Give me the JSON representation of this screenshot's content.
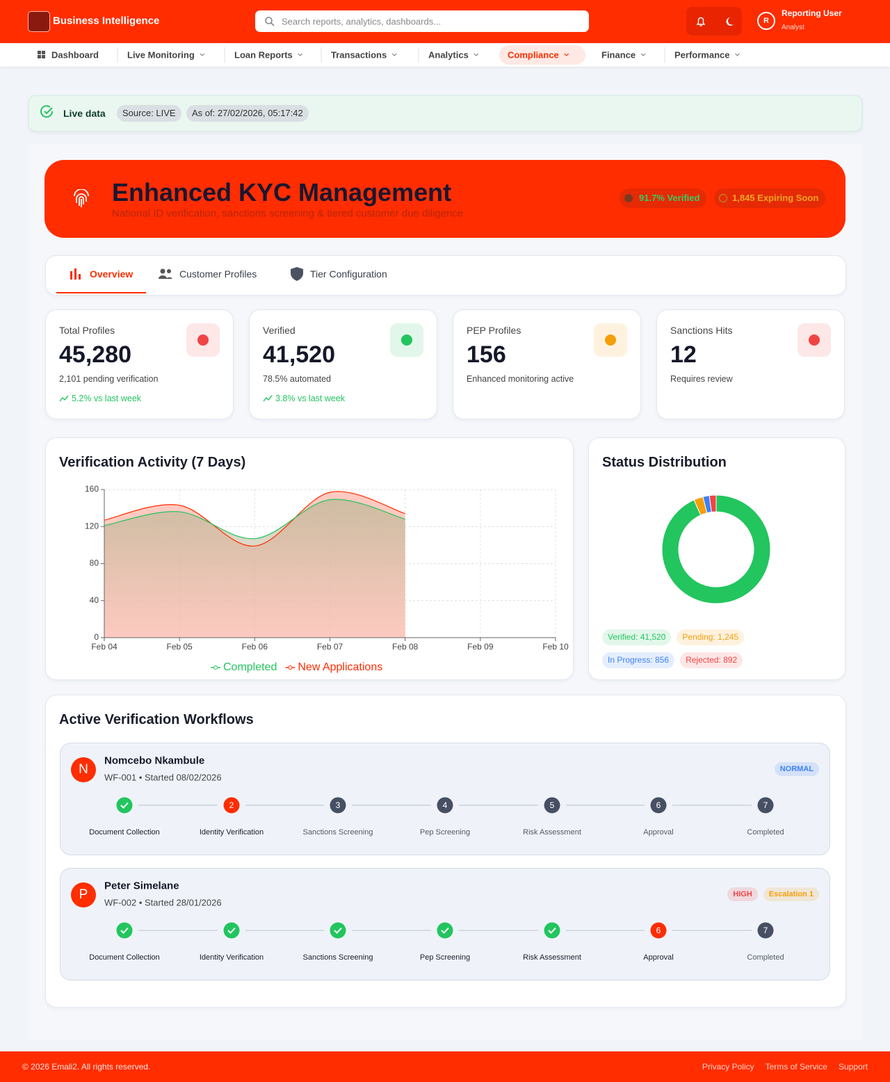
{
  "header": {
    "brand": "Business Intelligence",
    "search_placeholder": "Search reports, analytics, dashboards...",
    "user_initial": "R",
    "user_name": "Reporting User",
    "user_role": "Analyst"
  },
  "nav": {
    "items": [
      "Dashboard",
      "Live Monitoring",
      "Loan Reports",
      "Transactions",
      "Analytics",
      "Compliance",
      "Finance",
      "Performance"
    ],
    "active": 5
  },
  "status": {
    "label": "Live data",
    "source": "Source: LIVE",
    "as_of": "As of: 27/02/2026, 05:17:42"
  },
  "hero": {
    "title": "Enhanced KYC Management",
    "subtitle": "National ID verification, sanctions screening & tiered customer due diligence",
    "badges": [
      "91.7% Verified",
      "1,845 Expiring Soon"
    ]
  },
  "tabs": {
    "items": [
      "Overview",
      "Customer Profiles",
      "Tier Configuration"
    ],
    "active": 0
  },
  "stats": [
    {
      "label": "Total Profiles",
      "value": "45,280",
      "note": "2,101 pending verification",
      "trend": "5.2% vs last week",
      "color": "#ef4444"
    },
    {
      "label": "Verified",
      "value": "41,520",
      "note": "78.5% automated",
      "trend": "3.8% vs last week",
      "color": "#22c55e"
    },
    {
      "label": "PEP Profiles",
      "value": "156",
      "note": "Enhanced monitoring active",
      "color": "#f59e0b"
    },
    {
      "label": "Sanctions Hits",
      "value": "12",
      "note": "Requires review",
      "color": "#ef4444"
    }
  ],
  "chart_data": [
    {
      "type": "area",
      "title": "Verification Activity (7 Days)",
      "categories": [
        "Feb 04",
        "Feb 05",
        "Feb 06",
        "Feb 07",
        "Feb 08",
        "Feb 09",
        "Feb 10"
      ],
      "series": [
        {
          "name": "Completed",
          "color": "#22c55e",
          "values": [
            121,
            136,
            107,
            149,
            128,
            null,
            null
          ]
        },
        {
          "name": "New Applications",
          "color": "#ff2d00",
          "values": [
            127,
            143,
            99,
            157,
            134,
            null,
            null
          ]
        }
      ],
      "ylim": [
        0,
        160
      ],
      "yticks": [
        0,
        40,
        80,
        120,
        160
      ],
      "grid": true
    },
    {
      "type": "donut",
      "title": "Status Distribution",
      "values": [
        41520,
        1245,
        856,
        892
      ],
      "value_labels": [
        "Verified: 41,520",
        "Pending: 1,245",
        "In Progress: 856",
        "Rejected: 892"
      ],
      "colors": [
        "#22c55e",
        "#f59e0b",
        "#3b82f6",
        "#ef4444"
      ]
    }
  ],
  "workflows": {
    "title": "Active Verification Workflows",
    "items": [
      {
        "initial": "N",
        "name": "Nomcebo Nkambule",
        "meta": "WF-001 • Started 08/02/2026",
        "badges": [
          {
            "text": "NORMAL",
            "color": "#3b82f6"
          }
        ],
        "steps": [
          {
            "label": "Document Collection",
            "state": "done"
          },
          {
            "label": "Identity Verification",
            "number": "2",
            "state": "current"
          },
          {
            "label": "Sanctions Screening",
            "number": "3",
            "state": "pending"
          },
          {
            "label": "Pep Screening",
            "number": "4",
            "state": "pending"
          },
          {
            "label": "Risk Assessment",
            "number": "5",
            "state": "pending"
          },
          {
            "label": "Approval",
            "number": "6",
            "state": "pending"
          },
          {
            "label": "Completed",
            "number": "7",
            "state": "pending"
          }
        ]
      },
      {
        "initial": "P",
        "name": "Peter Simelane",
        "meta": "WF-002 • Started 28/01/2026",
        "badges": [
          {
            "text": "HIGH",
            "color": "#ef4444"
          },
          {
            "text": "Escalation 1",
            "color": "#f59e0b"
          }
        ],
        "steps": [
          {
            "label": "Document Collection",
            "state": "done"
          },
          {
            "label": "Identity Verification",
            "state": "done"
          },
          {
            "label": "Sanctions Screening",
            "state": "done"
          },
          {
            "label": "Pep Screening",
            "state": "done"
          },
          {
            "label": "Risk Assessment",
            "state": "done"
          },
          {
            "label": "Approval",
            "number": "6",
            "state": "current"
          },
          {
            "label": "Completed",
            "number": "7",
            "state": "pending"
          }
        ]
      }
    ]
  },
  "footer": {
    "copyright": "© 2026 Emali2. All rights reserved.",
    "links": [
      "Privacy Policy",
      "Terms of Service",
      "Support"
    ]
  }
}
